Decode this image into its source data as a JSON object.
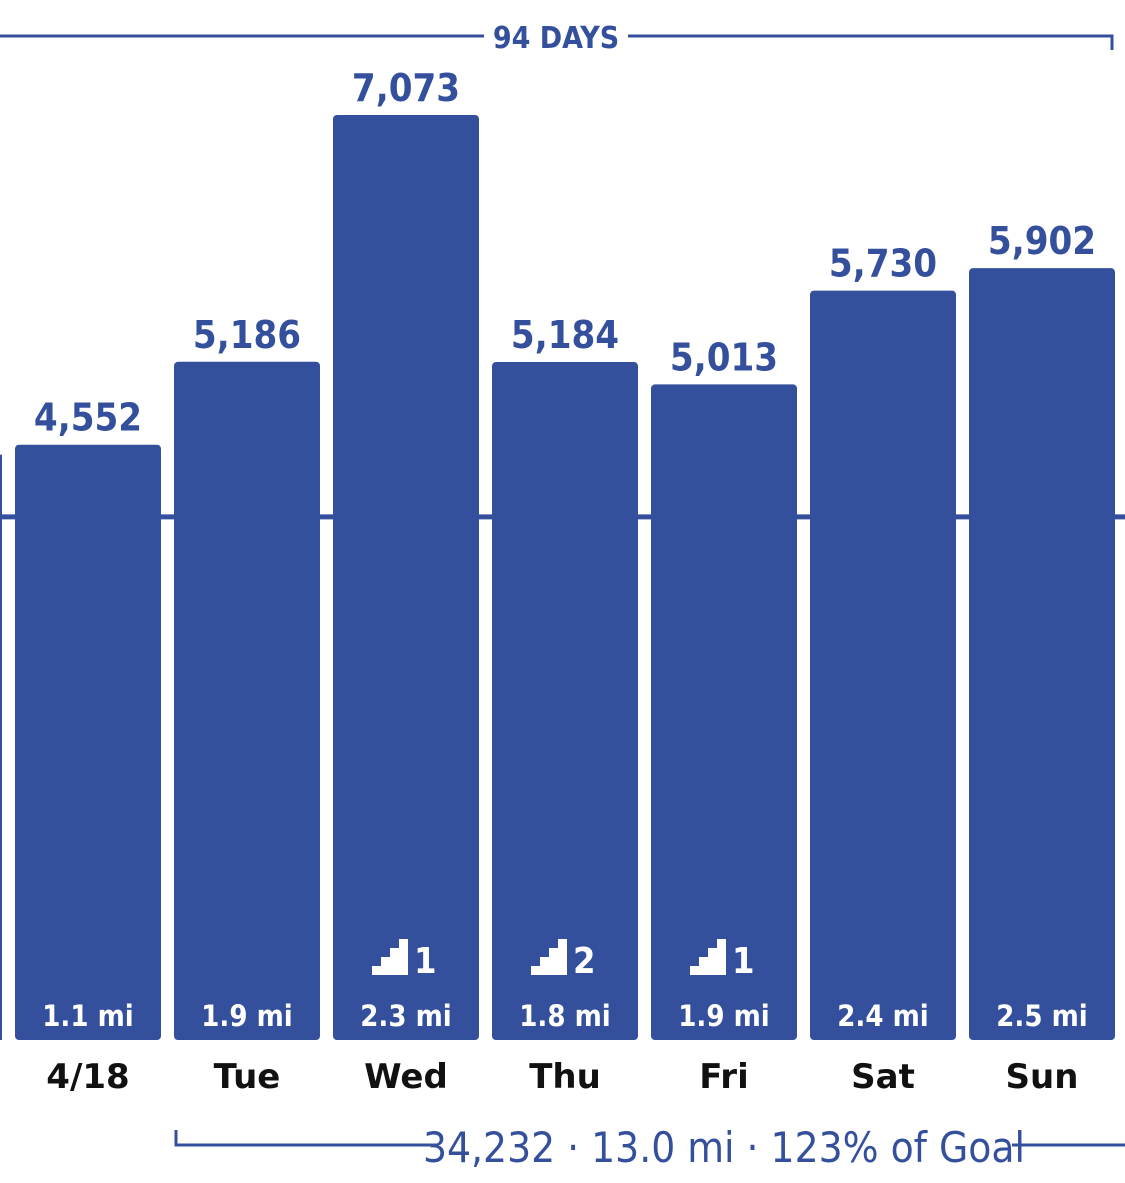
{
  "colors": {
    "bar": "#34509c",
    "accent": "#34509c",
    "day_label": "#111111",
    "in_bar_text": "#ffffff",
    "background": "#ffffff"
  },
  "streak": {
    "label": "94 DAYS"
  },
  "summary": {
    "text": "34,232 · 13.0 mi · 123% of Goal"
  },
  "chart_data": {
    "type": "bar",
    "categories": [
      "4/18",
      "Tue",
      "Wed",
      "Thu",
      "Fri",
      "Sat",
      "Sun"
    ],
    "values": [
      4552,
      5186,
      7073,
      5184,
      5013,
      5730,
      5902
    ],
    "value_labels": [
      "4,552",
      "5,186",
      "7,073",
      "5,184",
      "5,013",
      "5,730",
      "5,902"
    ],
    "distances": [
      "1.1 mi",
      "1.9 mi",
      "2.3 mi",
      "1.8 mi",
      "1.9 mi",
      "2.4 mi",
      "2.5 mi"
    ],
    "floors": [
      null,
      null,
      "1",
      "2",
      "1",
      null,
      null
    ],
    "floor_icon": "stairs-icon",
    "goal": 4000,
    "partial_previous_bar": true,
    "grid": false,
    "legend": "none"
  }
}
